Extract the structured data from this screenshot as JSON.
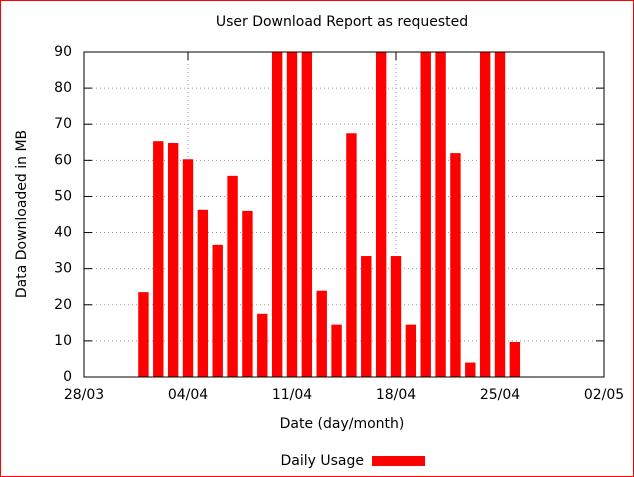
{
  "chart_data": {
    "type": "bar",
    "title": "User Download Report as requested",
    "x_label": "Date (day/month)",
    "y_label": "Data Downloaded in MB",
    "x": [
      "01/04",
      "02/04",
      "03/04",
      "04/04",
      "05/04",
      "06/04",
      "07/04",
      "08/04",
      "09/04",
      "10/04",
      "11/04",
      "12/04",
      "13/04",
      "14/04",
      "15/04",
      "16/04",
      "17/04",
      "18/04",
      "19/04",
      "20/04",
      "21/04",
      "22/04",
      "23/04",
      "24/04",
      "25/04",
      "26/04"
    ],
    "series": [
      {
        "name": "Daily Usage",
        "color": "#ff0000",
        "values": [
          23.5,
          65.3,
          64.8,
          60.3,
          46.3,
          36.6,
          55.7,
          46,
          17.5,
          90,
          90,
          90,
          23.9,
          14.5,
          67.5,
          33.5,
          90,
          33.5,
          14.5,
          90,
          90,
          62,
          4,
          90,
          90,
          9.7
        ]
      }
    ],
    "xlim": [
      "28/03",
      "02/05"
    ],
    "xticks": [
      "28/03",
      "04/04",
      "11/04",
      "18/04",
      "25/04",
      "02/05"
    ],
    "ylim": [
      0,
      90
    ],
    "yticks": [
      0,
      10,
      20,
      30,
      40,
      50,
      60,
      70,
      80,
      90
    ],
    "grid": true,
    "legend": "bottom"
  }
}
